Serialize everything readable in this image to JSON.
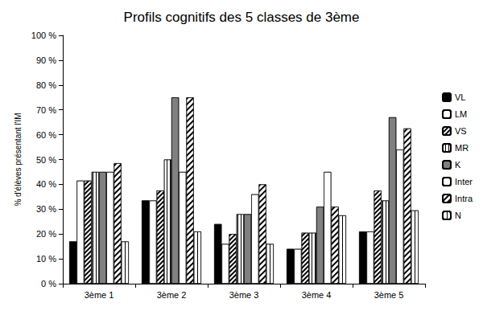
{
  "chart_data": {
    "type": "bar",
    "title": "Profils cognitifs des 5 classes de 3ème",
    "y_label": "% d'élèves présentant l'IM",
    "categories": [
      "3ème 1",
      "3ème 2",
      "3ème 3",
      "3ème 4",
      "3ème 5"
    ],
    "series": [
      {
        "name": "VL",
        "color": "#000000",
        "values": [
          17,
          33.5,
          24,
          14,
          21
        ]
      },
      {
        "name": "LM",
        "color": "#ffffff",
        "values": [
          41.5,
          33.5,
          16,
          14,
          21
        ]
      },
      {
        "name": "VS",
        "color": "#ffffff",
        "values": [
          41.5,
          37.5,
          20,
          20.5,
          37.5
        ]
      },
      {
        "name": "MR",
        "color": "#ffffff",
        "values": [
          45,
          50,
          28,
          20.5,
          33.5
        ]
      },
      {
        "name": "K",
        "color": "#808080",
        "values": [
          45,
          75,
          28,
          31,
          67
        ]
      },
      {
        "name": "Inter",
        "color": "#ffffff",
        "values": [
          45,
          45,
          36,
          45,
          54
        ]
      },
      {
        "name": "Intra",
        "color": "#ffffff",
        "values": [
          48.5,
          75,
          40,
          31,
          62.5
        ]
      },
      {
        "name": "N",
        "color": "#ffffff",
        "values": [
          17,
          21,
          16,
          27.5,
          29.5
        ]
      }
    ],
    "ylim": [
      0,
      100
    ],
    "yticks": [
      {
        "value": 0,
        "label": "0 %"
      },
      {
        "value": 10,
        "label": "10 %"
      },
      {
        "value": 20,
        "label": "20 %"
      },
      {
        "value": 30,
        "label": "30 %"
      },
      {
        "value": 40,
        "label": "40 %"
      },
      {
        "value": 50,
        "label": "50 %"
      },
      {
        "value": 60,
        "label": "60 %"
      },
      {
        "value": 70,
        "label": "70 %"
      },
      {
        "value": 80,
        "label": "80 %"
      },
      {
        "value": 90,
        "label": "90 %"
      },
      {
        "value": 100,
        "label": "100 %"
      }
    ],
    "grid": false,
    "legend": "right"
  }
}
